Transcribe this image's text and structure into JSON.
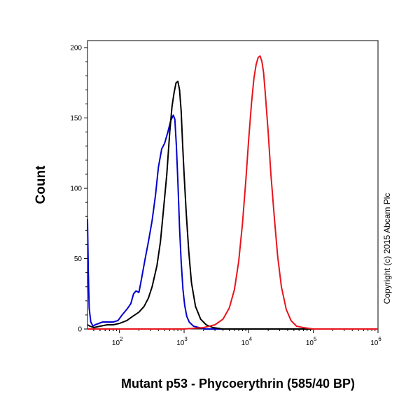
{
  "chart_data": {
    "type": "line",
    "title": "",
    "xlabel": "Mutant p53 - Phycoerythrin (585/40 BP)",
    "ylabel": "Count",
    "x_scale": "log",
    "xlim": [
      32,
      1000000
    ],
    "ylim": [
      0,
      205
    ],
    "yticks": [
      0,
      50,
      100,
      150,
      200
    ],
    "xtick_labels": [
      {
        "base": "10",
        "exp": "2",
        "value": 100
      },
      {
        "base": "10",
        "exp": "3",
        "value": 1000
      },
      {
        "base": "10",
        "exp": "4",
        "value": 10000
      },
      {
        "base": "10",
        "exp": "5",
        "value": 100000
      },
      {
        "base": "10",
        "exp": "6",
        "value": 1000000
      }
    ],
    "annotation": "Copyright (c) 2015 Abcam Plc",
    "grid": false,
    "series": [
      {
        "color": "#0000cc",
        "x": [
          32,
          33,
          34,
          36,
          39,
          42,
          48,
          55,
          65,
          80,
          95,
          110,
          130,
          150,
          165,
          180,
          200,
          220,
          250,
          280,
          320,
          360,
          400,
          450,
          500,
          560,
          620,
          680,
          720,
          760,
          800,
          850,
          900,
          960,
          1020,
          1100,
          1200,
          1400,
          1700,
          2100,
          2800,
          4000,
          10000,
          100000,
          1000000
        ],
        "y": [
          78,
          40,
          15,
          5,
          2,
          3,
          4,
          5,
          5,
          5,
          6,
          10,
          14,
          18,
          25,
          27,
          26,
          36,
          50,
          62,
          77,
          95,
          115,
          128,
          132,
          140,
          148,
          152,
          149,
          130,
          105,
          72,
          48,
          28,
          17,
          9,
          5,
          2,
          1,
          0,
          0,
          0,
          0,
          0,
          0
        ]
      },
      {
        "color": "#000000",
        "x": [
          32,
          35,
          40,
          50,
          65,
          80,
          100,
          130,
          160,
          200,
          240,
          280,
          320,
          380,
          430,
          480,
          540,
          600,
          650,
          700,
          750,
          800,
          850,
          900,
          950,
          1000,
          1080,
          1180,
          1300,
          1500,
          1800,
          2200,
          2800,
          4000,
          10000,
          100000,
          1000000
        ],
        "y": [
          3,
          2,
          1,
          2,
          3,
          3,
          4,
          6,
          9,
          12,
          16,
          22,
          30,
          45,
          62,
          85,
          110,
          140,
          158,
          168,
          175,
          176,
          170,
          155,
          130,
          110,
          82,
          55,
          33,
          16,
          7,
          3,
          1,
          0,
          0,
          0,
          0
        ]
      },
      {
        "color": "#e8141c",
        "x": [
          32,
          1000,
          2000,
          3000,
          4000,
          5000,
          6000,
          7000,
          8000,
          9000,
          10000,
          11000,
          12000,
          13000,
          14000,
          15000,
          16000,
          17000,
          18000,
          20000,
          22000,
          25000,
          28000,
          32000,
          38000,
          45000,
          55000,
          70000,
          100000,
          1000000
        ],
        "y": [
          0,
          0,
          1,
          3,
          7,
          15,
          28,
          48,
          75,
          105,
          135,
          160,
          178,
          188,
          193,
          194,
          190,
          182,
          168,
          140,
          110,
          78,
          52,
          30,
          14,
          6,
          2,
          1,
          0,
          0
        ]
      }
    ]
  }
}
